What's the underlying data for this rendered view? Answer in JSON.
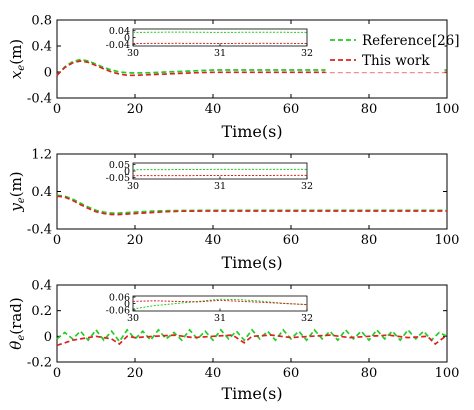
{
  "chart_data": [
    {
      "type": "line",
      "xlabel": "Time(s)",
      "ylabel_main": "x",
      "ylabel_sub": "e",
      "ylabel_unit": "(m)",
      "xlim": [
        0,
        100
      ],
      "ylim": [
        -0.4,
        0.8
      ],
      "xticks": [
        0,
        20,
        40,
        60,
        80,
        100
      ],
      "yticks": [
        -0.4,
        0,
        0.4,
        0.8
      ],
      "ytick_labels": [
        "-0.4",
        "0",
        "0.4",
        "0.8"
      ],
      "legend": {
        "position": "top-right"
      },
      "series": [
        {
          "name": "Reference[26]",
          "color": "#22cc22",
          "style": "dashed",
          "x": [
            0,
            2,
            4,
            6,
            8,
            10,
            12,
            14,
            16,
            18,
            20,
            24,
            28,
            32,
            36,
            40,
            50,
            60,
            70,
            80,
            90,
            100
          ],
          "y": [
            -0.05,
            0.08,
            0.16,
            0.19,
            0.17,
            0.12,
            0.07,
            0.03,
            0.0,
            -0.01,
            -0.015,
            -0.01,
            0.0,
            0.01,
            0.02,
            0.03,
            0.03,
            0.03,
            0.03,
            0.03,
            0.03,
            0.03
          ]
        },
        {
          "name": "This work",
          "color": "#dd2222",
          "style": "dashed",
          "x": [
            0,
            2,
            4,
            6,
            8,
            10,
            12,
            14,
            16,
            18,
            20,
            24,
            28,
            32,
            36,
            40,
            50,
            60,
            70,
            80,
            90,
            100
          ],
          "y": [
            -0.05,
            0.07,
            0.14,
            0.17,
            0.15,
            0.1,
            0.05,
            0.0,
            -0.03,
            -0.05,
            -0.05,
            -0.04,
            -0.03,
            -0.02,
            -0.01,
            -0.005,
            -0.005,
            -0.005,
            -0.005,
            -0.005,
            -0.005,
            -0.005
          ]
        }
      ],
      "inset": {
        "xlim": [
          30,
          32
        ],
        "ylim": [
          -0.05,
          0.05
        ],
        "xticks": [
          30,
          31,
          32
        ],
        "yticks": [
          0.04,
          0,
          -0.04
        ],
        "ytick_labels": [
          "0.04",
          "0",
          "-0.04"
        ],
        "series": [
          {
            "color": "#22cc22",
            "x": [
              30,
              30.5,
              31,
              31.5,
              32
            ],
            "y": [
              0.03,
              0.032,
              0.03,
              0.031,
              0.03
            ]
          },
          {
            "color": "#dd2222",
            "x": [
              30,
              30.5,
              31,
              31.5,
              32
            ],
            "y": [
              -0.035,
              -0.034,
              -0.035,
              -0.034,
              -0.035
            ]
          }
        ]
      }
    },
    {
      "type": "line",
      "xlabel": "Time(s)",
      "ylabel_main": "y",
      "ylabel_sub": "e",
      "ylabel_unit": "(m)",
      "xlim": [
        0,
        100
      ],
      "ylim": [
        -0.4,
        1.2
      ],
      "xticks": [
        0,
        20,
        40,
        60,
        80,
        100
      ],
      "yticks": [
        -0.4,
        0.4,
        1.2
      ],
      "ytick_labels": [
        "-0.4",
        "0.4",
        "1.2"
      ],
      "series": [
        {
          "name": "Reference[26]",
          "color": "#22cc22",
          "style": "dashed",
          "x": [
            0,
            2,
            4,
            6,
            8,
            10,
            12,
            14,
            16,
            18,
            20,
            24,
            28,
            32,
            40,
            50,
            60,
            70,
            80,
            90,
            100
          ],
          "y": [
            0.32,
            0.3,
            0.24,
            0.15,
            0.07,
            0.0,
            -0.04,
            -0.06,
            -0.06,
            -0.05,
            -0.04,
            -0.02,
            -0.01,
            -0.005,
            0.0,
            0.0,
            0.0,
            0.0,
            0.0,
            0.0,
            0.0
          ]
        },
        {
          "name": "This work",
          "color": "#dd2222",
          "style": "dashed",
          "x": [
            0,
            2,
            4,
            6,
            8,
            10,
            12,
            14,
            16,
            18,
            20,
            24,
            28,
            32,
            40,
            50,
            60,
            70,
            80,
            90,
            100
          ],
          "y": [
            0.3,
            0.28,
            0.21,
            0.12,
            0.04,
            -0.03,
            -0.07,
            -0.09,
            -0.09,
            -0.08,
            -0.07,
            -0.05,
            -0.03,
            -0.02,
            -0.015,
            -0.015,
            -0.015,
            -0.015,
            -0.015,
            -0.015,
            -0.015
          ]
        }
      ],
      "inset": {
        "xlim": [
          30,
          32
        ],
        "ylim": [
          -0.06,
          0.06
        ],
        "xticks": [
          30,
          31,
          32
        ],
        "yticks": [
          0.05,
          0,
          -0.05
        ],
        "ytick_labels": [
          "0.05",
          "0",
          "-0.05"
        ],
        "series": [
          {
            "color": "#22cc22",
            "x": [
              30,
              31,
              32
            ],
            "y": [
              0.01,
              0.012,
              0.012
            ]
          },
          {
            "color": "#dd2222",
            "x": [
              30,
              31,
              32
            ],
            "y": [
              -0.035,
              -0.034,
              -0.033
            ]
          }
        ]
      }
    },
    {
      "type": "line",
      "xlabel": "Time(s)",
      "ylabel_main": "θ",
      "ylabel_sub": "e",
      "ylabel_unit": "(rad)",
      "xlim": [
        0,
        100
      ],
      "ylim": [
        -0.2,
        0.4
      ],
      "xticks": [
        0,
        20,
        40,
        60,
        80,
        100
      ],
      "yticks": [
        -0.2,
        0,
        0.2,
        0.4
      ],
      "ytick_labels": [
        "-0.2",
        "0",
        "0.2",
        "0.4"
      ],
      "series": [
        {
          "name": "Reference[26]",
          "color": "#22cc22",
          "style": "dashed",
          "x": [
            0,
            2,
            4,
            6,
            8,
            10,
            12,
            14,
            16,
            18,
            20,
            22,
            24,
            26,
            28,
            30,
            32,
            34,
            36,
            38,
            40,
            42,
            44,
            46,
            48,
            50,
            52,
            54,
            56,
            58,
            60,
            62,
            64,
            66,
            68,
            70,
            72,
            74,
            76,
            78,
            80,
            82,
            84,
            86,
            88,
            90,
            92,
            94,
            96,
            98,
            100
          ],
          "y": [
            -0.02,
            0.03,
            -0.02,
            0.04,
            -0.03,
            0.05,
            -0.03,
            0.04,
            -0.04,
            0.05,
            -0.02,
            0.04,
            -0.03,
            0.05,
            -0.02,
            0.03,
            -0.03,
            0.05,
            -0.02,
            0.04,
            -0.03,
            0.05,
            -0.02,
            0.04,
            -0.03,
            0.05,
            -0.02,
            0.04,
            -0.03,
            0.05,
            -0.02,
            0.04,
            -0.03,
            0.05,
            -0.02,
            0.04,
            -0.03,
            0.05,
            -0.02,
            0.04,
            -0.03,
            0.05,
            -0.02,
            0.04,
            -0.03,
            0.05,
            -0.02,
            0.04,
            -0.03,
            0.03,
            0.0
          ]
        },
        {
          "name": "This work",
          "color": "#dd2222",
          "style": "dashed",
          "x": [
            0,
            2,
            4,
            6,
            8,
            10,
            12,
            14,
            16,
            18,
            20,
            25,
            30,
            35,
            40,
            45,
            48,
            50,
            55,
            60,
            65,
            70,
            75,
            80,
            85,
            90,
            95,
            97,
            100
          ],
          "y": [
            -0.07,
            -0.05,
            -0.03,
            -0.02,
            -0.01,
            0.0,
            -0.01,
            -0.02,
            -0.06,
            0.0,
            -0.01,
            0.0,
            0.01,
            -0.01,
            0.0,
            0.01,
            -0.05,
            0.0,
            0.01,
            -0.01,
            0.0,
            0.01,
            -0.01,
            0.0,
            0.01,
            -0.01,
            0.0,
            -0.06,
            0.01
          ]
        }
      ],
      "inset": {
        "xlim": [
          30,
          32
        ],
        "ylim": [
          -0.07,
          0.07
        ],
        "xticks": [
          30,
          31,
          32
        ],
        "yticks": [
          0.06,
          0,
          -0.06
        ],
        "ytick_labels": [
          "0.06",
          "0",
          "-0.06"
        ],
        "series": [
          {
            "color": "#22cc22",
            "x": [
              30,
              30.25,
              30.5,
              30.75,
              31,
              31.25,
              31.5,
              31.75,
              32
            ],
            "y": [
              -0.05,
              -0.02,
              0.0,
              0.02,
              0.04,
              0.035,
              0.02,
              0.0,
              -0.01
            ]
          },
          {
            "color": "#dd2222",
            "x": [
              30,
              30.25,
              30.5,
              30.75,
              31,
              31.25,
              31.5,
              31.75,
              32
            ],
            "y": [
              0.02,
              0.025,
              0.02,
              0.015,
              0.03,
              0.02,
              0.01,
              0.0,
              -0.01
            ]
          }
        ]
      }
    }
  ]
}
